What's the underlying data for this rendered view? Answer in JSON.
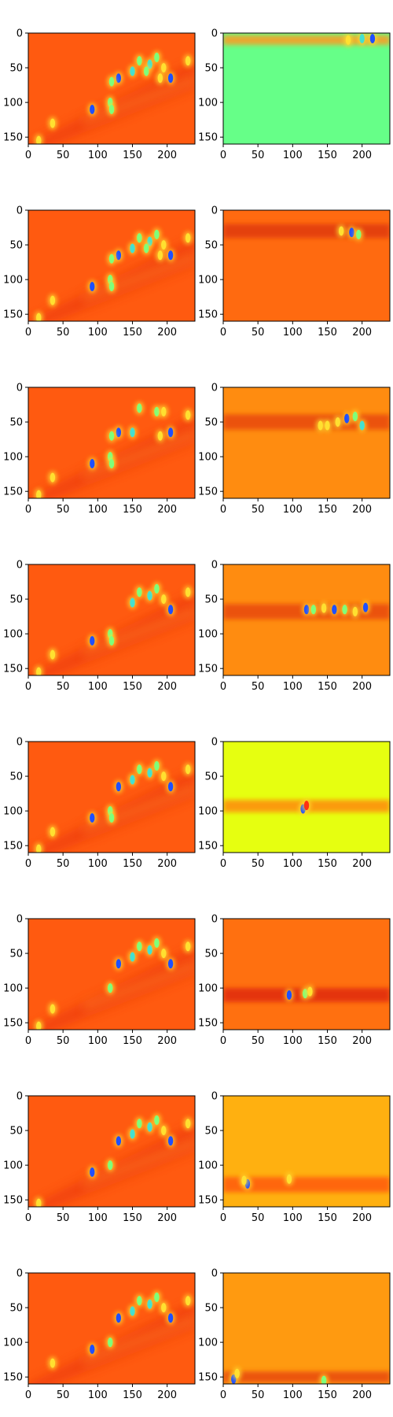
{
  "figure": {
    "title": "",
    "colormap": "jet",
    "background": "#ffffff"
  },
  "chart_data": [
    {
      "type": "heatmap",
      "panel_row": 1,
      "panel_col": 1,
      "content": "full feature map",
      "fill": "#ff5a10",
      "xlim": [
        0,
        240
      ],
      "ylim": [
        160,
        0
      ],
      "xticks": [
        0,
        50,
        100,
        150,
        200
      ],
      "yticks": [
        0,
        50,
        100,
        150
      ],
      "hotspots": [
        [
          160,
          40,
          "#7fff7a"
        ],
        [
          175,
          45,
          "#44e0d0"
        ],
        [
          185,
          35,
          "#7fff7a"
        ],
        [
          195,
          50,
          "#ffe030"
        ],
        [
          205,
          65,
          "#1f4fff"
        ],
        [
          190,
          65,
          "#ffe030"
        ],
        [
          170,
          55,
          "#7fff7a"
        ],
        [
          150,
          55,
          "#44e0d0"
        ],
        [
          130,
          65,
          "#1f4fff"
        ],
        [
          120,
          70,
          "#7fff7a"
        ],
        [
          118,
          100,
          "#7fff7a"
        ],
        [
          120,
          110,
          "#7fff7a"
        ],
        [
          92,
          110,
          "#1f4fff"
        ],
        [
          35,
          130,
          "#ffe030"
        ],
        [
          15,
          155,
          "#ffe030"
        ],
        [
          230,
          40,
          "#ffe030"
        ]
      ]
    },
    {
      "type": "heatmap",
      "panel_row": 1,
      "panel_col": 2,
      "content": "channel response row band 10",
      "fill": "#66ff88",
      "xlim": [
        0,
        240
      ],
      "ylim": [
        160,
        0
      ],
      "xticks": [
        0,
        50,
        100,
        150,
        200
      ],
      "yticks": [
        0,
        50,
        100,
        150
      ],
      "band": {
        "y": 10,
        "height": 14,
        "color": "#ff9a20"
      },
      "hotspots": [
        [
          215,
          8,
          "#1f4fff"
        ],
        [
          180,
          10,
          "#ffe030"
        ],
        [
          200,
          8,
          "#44e0d0"
        ]
      ]
    },
    {
      "type": "heatmap",
      "panel_row": 2,
      "panel_col": 1,
      "content": "full feature map",
      "fill": "#ff5a10",
      "xlim": [
        0,
        240
      ],
      "ylim": [
        160,
        0
      ],
      "xticks": [
        0,
        50,
        100,
        150,
        200
      ],
      "yticks": [
        0,
        50,
        100,
        150
      ],
      "hotspots": [
        [
          160,
          40,
          "#7fff7a"
        ],
        [
          175,
          45,
          "#44e0d0"
        ],
        [
          185,
          35,
          "#7fff7a"
        ],
        [
          195,
          50,
          "#ffe030"
        ],
        [
          205,
          65,
          "#1f4fff"
        ],
        [
          190,
          65,
          "#ffe030"
        ],
        [
          170,
          55,
          "#7fff7a"
        ],
        [
          150,
          55,
          "#44e0d0"
        ],
        [
          130,
          65,
          "#1f4fff"
        ],
        [
          120,
          70,
          "#7fff7a"
        ],
        [
          118,
          100,
          "#7fff7a"
        ],
        [
          120,
          110,
          "#7fff7a"
        ],
        [
          92,
          110,
          "#1f4fff"
        ],
        [
          35,
          130,
          "#ffe030"
        ],
        [
          15,
          155,
          "#ffe030"
        ],
        [
          230,
          40,
          "#ffe030"
        ]
      ]
    },
    {
      "type": "heatmap",
      "panel_row": 2,
      "panel_col": 2,
      "content": "channel response row band 30",
      "fill": "#ff6a10",
      "xlim": [
        0,
        240
      ],
      "ylim": [
        160,
        0
      ],
      "xticks": [
        0,
        50,
        100,
        150,
        200
      ],
      "yticks": [
        0,
        50,
        100,
        150
      ],
      "band": {
        "y": 30,
        "height": 20,
        "color": "#e03a10"
      },
      "hotspots": [
        [
          170,
          30,
          "#ffe030"
        ],
        [
          185,
          32,
          "#1f4fff"
        ],
        [
          195,
          35,
          "#7fff7a"
        ]
      ]
    },
    {
      "type": "heatmap",
      "panel_row": 3,
      "panel_col": 1,
      "content": "full feature map",
      "fill": "#ff5a10",
      "xlim": [
        0,
        240
      ],
      "ylim": [
        160,
        0
      ],
      "xticks": [
        0,
        50,
        100,
        150,
        200
      ],
      "yticks": [
        0,
        50,
        100,
        150
      ],
      "hotspots": [
        [
          160,
          30,
          "#7fff7a"
        ],
        [
          185,
          35,
          "#7fff7a"
        ],
        [
          195,
          35,
          "#ffe030"
        ],
        [
          205,
          65,
          "#1f4fff"
        ],
        [
          190,
          70,
          "#ffe030"
        ],
        [
          150,
          65,
          "#44e0d0"
        ],
        [
          130,
          65,
          "#1f4fff"
        ],
        [
          120,
          70,
          "#7fff7a"
        ],
        [
          118,
          100,
          "#7fff7a"
        ],
        [
          120,
          110,
          "#7fff7a"
        ],
        [
          92,
          110,
          "#1f4fff"
        ],
        [
          35,
          130,
          "#ffe030"
        ],
        [
          15,
          155,
          "#ffe030"
        ],
        [
          230,
          40,
          "#ffe030"
        ]
      ]
    },
    {
      "type": "heatmap",
      "panel_row": 3,
      "panel_col": 2,
      "content": "channel response row band 50",
      "fill": "#ff8c10",
      "xlim": [
        0,
        240
      ],
      "ylim": [
        160,
        0
      ],
      "xticks": [
        0,
        50,
        100,
        150,
        200
      ],
      "yticks": [
        0,
        50,
        100,
        150
      ],
      "band": {
        "y": 50,
        "height": 22,
        "color": "#e84a10"
      },
      "hotspots": [
        [
          165,
          50,
          "#ffe030"
        ],
        [
          178,
          45,
          "#1f4fff"
        ],
        [
          190,
          42,
          "#7fff7a"
        ],
        [
          150,
          55,
          "#ffe030"
        ],
        [
          200,
          55,
          "#44e0d0"
        ],
        [
          140,
          55,
          "#ffe030"
        ]
      ]
    },
    {
      "type": "heatmap",
      "panel_row": 4,
      "panel_col": 1,
      "content": "full feature map",
      "fill": "#ff5a10",
      "xlim": [
        0,
        240
      ],
      "ylim": [
        160,
        0
      ],
      "xticks": [
        0,
        50,
        100,
        150,
        200
      ],
      "yticks": [
        0,
        50,
        100,
        150
      ],
      "hotspots": [
        [
          160,
          40,
          "#7fff7a"
        ],
        [
          175,
          45,
          "#44e0d0"
        ],
        [
          185,
          35,
          "#7fff7a"
        ],
        [
          195,
          50,
          "#ffe030"
        ],
        [
          205,
          65,
          "#1f4fff"
        ],
        [
          150,
          55,
          "#44e0d0"
        ],
        [
          118,
          100,
          "#7fff7a"
        ],
        [
          120,
          110,
          "#7fff7a"
        ],
        [
          92,
          110,
          "#1f4fff"
        ],
        [
          35,
          130,
          "#ffe030"
        ],
        [
          15,
          155,
          "#ffe030"
        ],
        [
          230,
          40,
          "#ffe030"
        ]
      ]
    },
    {
      "type": "heatmap",
      "panel_row": 4,
      "panel_col": 2,
      "content": "channel response row band 65",
      "fill": "#ff8c10",
      "xlim": [
        0,
        240
      ],
      "ylim": [
        160,
        0
      ],
      "xticks": [
        0,
        50,
        100,
        150,
        200
      ],
      "yticks": [
        0,
        50,
        100,
        150
      ],
      "band": {
        "y": 68,
        "height": 22,
        "color": "#e84a10"
      },
      "hotspots": [
        [
          120,
          65,
          "#1f4fff"
        ],
        [
          130,
          65,
          "#7fff7a"
        ],
        [
          145,
          63,
          "#ffe030"
        ],
        [
          160,
          65,
          "#1f4fff"
        ],
        [
          175,
          65,
          "#7fff7a"
        ],
        [
          190,
          68,
          "#ffe030"
        ],
        [
          205,
          62,
          "#1f4fff"
        ]
      ]
    },
    {
      "type": "heatmap",
      "panel_row": 5,
      "panel_col": 1,
      "content": "full feature map",
      "fill": "#ff5a10",
      "xlim": [
        0,
        240
      ],
      "ylim": [
        160,
        0
      ],
      "xticks": [
        0,
        50,
        100,
        150,
        200
      ],
      "yticks": [
        0,
        50,
        100,
        150
      ],
      "hotspots": [
        [
          160,
          40,
          "#7fff7a"
        ],
        [
          175,
          45,
          "#44e0d0"
        ],
        [
          185,
          35,
          "#7fff7a"
        ],
        [
          195,
          50,
          "#ffe030"
        ],
        [
          205,
          65,
          "#1f4fff"
        ],
        [
          150,
          55,
          "#44e0d0"
        ],
        [
          130,
          65,
          "#1f4fff"
        ],
        [
          118,
          100,
          "#7fff7a"
        ],
        [
          120,
          110,
          "#7fff7a"
        ],
        [
          92,
          110,
          "#1f4fff"
        ],
        [
          35,
          130,
          "#ffe030"
        ],
        [
          15,
          155,
          "#ffe030"
        ],
        [
          230,
          40,
          "#ffe030"
        ]
      ]
    },
    {
      "type": "heatmap",
      "panel_row": 5,
      "panel_col": 2,
      "content": "channel response row band 95",
      "fill": "#e6ff10",
      "xlim": [
        0,
        240
      ],
      "ylim": [
        160,
        0
      ],
      "xticks": [
        0,
        50,
        100,
        150,
        200
      ],
      "yticks": [
        0,
        50,
        100,
        150
      ],
      "band": {
        "y": 93,
        "height": 18,
        "color": "#ff8a10"
      },
      "hotspots": [
        [
          115,
          97,
          "#1f4fff"
        ],
        [
          120,
          92,
          "#ff3010"
        ]
      ]
    },
    {
      "type": "heatmap",
      "panel_row": 6,
      "panel_col": 1,
      "content": "full feature map",
      "fill": "#ff5a10",
      "xlim": [
        0,
        240
      ],
      "ylim": [
        160,
        0
      ],
      "xticks": [
        0,
        50,
        100,
        150,
        200
      ],
      "yticks": [
        0,
        50,
        100,
        150
      ],
      "hotspots": [
        [
          160,
          40,
          "#7fff7a"
        ],
        [
          175,
          45,
          "#44e0d0"
        ],
        [
          185,
          35,
          "#7fff7a"
        ],
        [
          195,
          50,
          "#ffe030"
        ],
        [
          205,
          65,
          "#1f4fff"
        ],
        [
          150,
          55,
          "#44e0d0"
        ],
        [
          130,
          65,
          "#1f4fff"
        ],
        [
          118,
          100,
          "#7fff7a"
        ],
        [
          35,
          130,
          "#ffe030"
        ],
        [
          15,
          155,
          "#ffe030"
        ],
        [
          230,
          40,
          "#ffe030"
        ]
      ]
    },
    {
      "type": "heatmap",
      "panel_row": 6,
      "panel_col": 2,
      "content": "channel response row band 110",
      "fill": "#ff7010",
      "xlim": [
        0,
        240
      ],
      "ylim": [
        160,
        0
      ],
      "xticks": [
        0,
        50,
        100,
        150,
        200
      ],
      "yticks": [
        0,
        50,
        100,
        150
      ],
      "band": {
        "y": 110,
        "height": 20,
        "color": "#e02a10"
      },
      "hotspots": [
        [
          95,
          110,
          "#1f4fff"
        ],
        [
          118,
          108,
          "#7fff7a"
        ],
        [
          125,
          105,
          "#ffe030"
        ]
      ]
    },
    {
      "type": "heatmap",
      "panel_row": 7,
      "panel_col": 1,
      "content": "full feature map",
      "fill": "#ff5a10",
      "xlim": [
        0,
        240
      ],
      "ylim": [
        160,
        0
      ],
      "xticks": [
        0,
        50,
        100,
        150,
        200
      ],
      "yticks": [
        0,
        50,
        100,
        150
      ],
      "hotspots": [
        [
          160,
          40,
          "#7fff7a"
        ],
        [
          175,
          45,
          "#44e0d0"
        ],
        [
          185,
          35,
          "#7fff7a"
        ],
        [
          195,
          50,
          "#ffe030"
        ],
        [
          205,
          65,
          "#1f4fff"
        ],
        [
          150,
          55,
          "#44e0d0"
        ],
        [
          130,
          65,
          "#1f4fff"
        ],
        [
          118,
          100,
          "#7fff7a"
        ],
        [
          92,
          110,
          "#1f4fff"
        ],
        [
          15,
          155,
          "#ffe030"
        ],
        [
          230,
          40,
          "#ffe030"
        ]
      ]
    },
    {
      "type": "heatmap",
      "panel_row": 7,
      "panel_col": 2,
      "content": "channel response row band 128",
      "fill": "#ffb010",
      "xlim": [
        0,
        240
      ],
      "ylim": [
        160,
        0
      ],
      "xticks": [
        0,
        50,
        100,
        150,
        200
      ],
      "yticks": [
        0,
        50,
        100,
        150
      ],
      "band": {
        "y": 128,
        "height": 22,
        "color": "#ff5a10"
      },
      "hotspots": [
        [
          35,
          127,
          "#1f4fff"
        ],
        [
          30,
          122,
          "#ffe030"
        ],
        [
          95,
          120,
          "#ffe030"
        ]
      ]
    },
    {
      "type": "heatmap",
      "panel_row": 8,
      "panel_col": 1,
      "content": "full feature map",
      "fill": "#ff5a10",
      "xlim": [
        0,
        240
      ],
      "ylim": [
        160,
        0
      ],
      "xticks": [
        0,
        50,
        100,
        150,
        200
      ],
      "yticks": [
        0,
        50,
        100,
        150
      ],
      "hotspots": [
        [
          160,
          40,
          "#7fff7a"
        ],
        [
          175,
          45,
          "#44e0d0"
        ],
        [
          185,
          35,
          "#7fff7a"
        ],
        [
          195,
          50,
          "#ffe030"
        ],
        [
          205,
          65,
          "#1f4fff"
        ],
        [
          150,
          55,
          "#44e0d0"
        ],
        [
          130,
          65,
          "#1f4fff"
        ],
        [
          118,
          100,
          "#7fff7a"
        ],
        [
          92,
          110,
          "#1f4fff"
        ],
        [
          35,
          130,
          "#ffe030"
        ],
        [
          230,
          40,
          "#ffe030"
        ]
      ]
    },
    {
      "type": "heatmap",
      "panel_row": 8,
      "panel_col": 2,
      "content": "channel response row band 150",
      "fill": "#ff9a10",
      "xlim": [
        0,
        240
      ],
      "ylim": [
        160,
        0
      ],
      "xticks": [
        0,
        50,
        100,
        150,
        200
      ],
      "yticks": [
        0,
        50,
        100,
        150
      ],
      "band": {
        "y": 150,
        "height": 16,
        "color": "#e84a10"
      },
      "hotspots": [
        [
          15,
          153,
          "#1f4fff"
        ],
        [
          20,
          145,
          "#ffe030"
        ],
        [
          145,
          155,
          "#7fff7a"
        ]
      ]
    }
  ]
}
